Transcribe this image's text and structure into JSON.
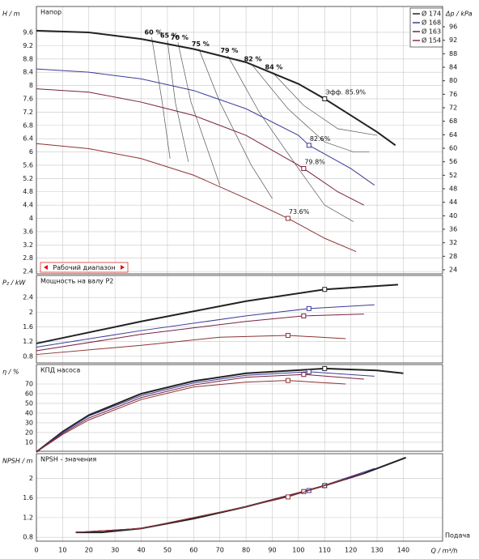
{
  "chart_data": [
    {
      "type": "line",
      "title": "Напор",
      "ylabel": "H / m",
      "y2label": "Δp / kPa",
      "xlim": [
        0,
        155
      ],
      "xticks": [
        0,
        10,
        20,
        30,
        40,
        50,
        60,
        70,
        80,
        90,
        100,
        110,
        120,
        130,
        140
      ],
      "ylim": [
        2.33,
        10.38
      ],
      "yticks": [
        2.4,
        2.8,
        3.2,
        3.6,
        4,
        4.4,
        4.8,
        5.2,
        5.6,
        6,
        6.4,
        6.8,
        7.2,
        7.6,
        8,
        8.4,
        8.8,
        9.2,
        9.6
      ],
      "y2lim": [
        22.8,
        102
      ],
      "y2ticks": [
        24,
        28,
        32,
        36,
        40,
        44,
        48,
        52,
        56,
        60,
        64,
        68,
        72,
        76,
        80,
        84,
        88,
        92,
        96
      ],
      "grid": true,
      "legend": "upper right",
      "annotation": "Рабочий диапазон",
      "series": [
        {
          "name": "Ø 174",
          "color": "#222222",
          "width": 2,
          "x": [
            0,
            20,
            40,
            60,
            80,
            100,
            110,
            120,
            130,
            137
          ],
          "values": [
            9.65,
            9.6,
            9.4,
            9.1,
            8.7,
            8.05,
            7.6,
            7.1,
            6.6,
            6.2
          ],
          "bep_x": 110,
          "bep_y": 7.6,
          "bep_label": "Эфф.  85.9%"
        },
        {
          "name": "Ø 168",
          "color": "#3b3b9c",
          "width": 1,
          "x": [
            0,
            20,
            40,
            60,
            80,
            100,
            104,
            120,
            129
          ],
          "values": [
            8.5,
            8.4,
            8.2,
            7.85,
            7.3,
            6.5,
            6.2,
            5.5,
            5.0
          ],
          "bep_x": 104,
          "bep_y": 6.2,
          "bep_label": "82.6%"
        },
        {
          "name": "Ø 163",
          "color": "#7a2040",
          "width": 1,
          "x": [
            0,
            20,
            40,
            60,
            80,
            100,
            102,
            115,
            125
          ],
          "values": [
            7.9,
            7.8,
            7.5,
            7.1,
            6.5,
            5.6,
            5.5,
            4.8,
            4.4
          ],
          "bep_x": 102,
          "bep_y": 5.5,
          "bep_label": "79.8%"
        },
        {
          "name": "Ø 154",
          "color": "#8c3434",
          "width": 1,
          "x": [
            0,
            20,
            40,
            60,
            80,
            96,
            110,
            122
          ],
          "values": [
            6.25,
            6.1,
            5.8,
            5.3,
            4.6,
            4.0,
            3.4,
            3.0
          ],
          "bep_x": 96,
          "bep_y": 4.0,
          "bep_label": "73.6%"
        }
      ],
      "iso_lines": [
        {
          "label": "60 %",
          "x": [
            44,
            48,
            51
          ],
          "values": [
            9.45,
            7.5,
            5.8
          ]
        },
        {
          "label": "65 %",
          "x": [
            50,
            53,
            58
          ],
          "values": [
            9.35,
            7.5,
            5.7
          ]
        },
        {
          "label": "70 %",
          "x": [
            54,
            59,
            70
          ],
          "values": [
            9.3,
            7.5,
            5.0
          ]
        },
        {
          "label": "75 %",
          "x": [
            62,
            70,
            82,
            90
          ],
          "values": [
            9.1,
            7.5,
            5.6,
            4.6
          ]
        },
        {
          "label": "79 %",
          "x": [
            73,
            85,
            100,
            110,
            121
          ],
          "values": [
            8.9,
            7.2,
            5.5,
            4.4,
            3.9
          ]
        },
        {
          "label": "82 %",
          "x": [
            82,
            96,
            110,
            121,
            127
          ],
          "values": [
            8.65,
            7.3,
            6.3,
            6.0,
            6.0
          ]
        },
        {
          "label": "84 %",
          "x": [
            90,
            102,
            115,
            130
          ],
          "values": [
            8.4,
            7.4,
            6.7,
            6.5
          ]
        }
      ]
    },
    {
      "type": "line",
      "title": "Мощность на валу P2",
      "ylabel": "P₂ / kW",
      "xlim": [
        0,
        155
      ],
      "xticks": [
        0,
        10,
        20,
        30,
        40,
        50,
        60,
        70,
        80,
        90,
        100,
        110,
        120,
        130,
        140
      ],
      "ylim": [
        0.62,
        3.0
      ],
      "yticks": [
        0.8,
        1.2,
        1.6,
        2,
        2.4
      ],
      "grid": true,
      "series": [
        {
          "color": "#222222",
          "width": 2,
          "x": [
            0,
            40,
            80,
            110,
            138
          ],
          "values": [
            1.15,
            1.75,
            2.3,
            2.62,
            2.75
          ],
          "bep_x": 110,
          "bep_y": 2.62
        },
        {
          "color": "#3b3b9c",
          "width": 1,
          "x": [
            0,
            40,
            80,
            104,
            129
          ],
          "values": [
            1.05,
            1.5,
            1.9,
            2.1,
            2.2
          ],
          "bep_x": 104,
          "bep_y": 2.1
        },
        {
          "color": "#7a2040",
          "width": 1,
          "x": [
            0,
            40,
            80,
            102,
            125
          ],
          "values": [
            0.95,
            1.4,
            1.75,
            1.9,
            1.95
          ],
          "bep_x": 102,
          "bep_y": 1.9
        },
        {
          "color": "#8c3434",
          "width": 1,
          "x": [
            0,
            40,
            70,
            96,
            118
          ],
          "values": [
            0.85,
            1.1,
            1.32,
            1.37,
            1.28
          ],
          "bep_x": 96,
          "bep_y": 1.37
        }
      ]
    },
    {
      "type": "line",
      "title": "КПД насоса",
      "ylabel": "η / %",
      "xlim": [
        0,
        155
      ],
      "xticks": [
        0,
        10,
        20,
        30,
        40,
        50,
        60,
        70,
        80,
        90,
        100,
        110,
        120,
        130,
        140
      ],
      "ylim": [
        0.8,
        90
      ],
      "yticks": [
        10,
        20,
        30,
        40,
        50,
        60,
        70
      ],
      "grid": true,
      "series": [
        {
          "color": "#222222",
          "width": 2,
          "x": [
            0,
            10,
            20,
            40,
            60,
            80,
            110,
            130,
            140
          ],
          "values": [
            0,
            21,
            38,
            60,
            73,
            81,
            85.9,
            84,
            81
          ],
          "bep_x": 110,
          "bep_y": 85.9
        },
        {
          "color": "#3b3b9c",
          "width": 1,
          "x": [
            0,
            10,
            20,
            40,
            60,
            80,
            104,
            129
          ],
          "values": [
            0,
            20,
            37,
            58,
            71,
            79,
            82.6,
            78
          ],
          "bep_x": 104,
          "bep_y": 82.6
        },
        {
          "color": "#7a2040",
          "width": 1,
          "x": [
            0,
            10,
            20,
            40,
            60,
            80,
            102,
            125
          ],
          "values": [
            0,
            19,
            35,
            56,
            69,
            77,
            79.8,
            75
          ],
          "bep_x": 102,
          "bep_y": 79.8
        },
        {
          "color": "#8c3434",
          "width": 1,
          "x": [
            0,
            10,
            20,
            40,
            60,
            80,
            96,
            118
          ],
          "values": [
            0,
            18,
            33,
            54,
            67,
            72,
            73.6,
            70
          ],
          "bep_x": 96,
          "bep_y": 73.6
        }
      ]
    },
    {
      "type": "line",
      "title": "NPSH - значения",
      "ylabel": "NPSH / m",
      "xlabel": "Q / m³/h",
      "xnote": "Подача",
      "xlim": [
        0,
        155
      ],
      "xticks": [
        0,
        10,
        20,
        30,
        40,
        50,
        60,
        70,
        80,
        90,
        100,
        110,
        120,
        130,
        140
      ],
      "ylim": [
        0.72,
        2.5
      ],
      "yticks": [
        0.8,
        1.2,
        1.6,
        2
      ],
      "grid": true,
      "series": [
        {
          "color": "#222222",
          "width": 2,
          "x": [
            15,
            25,
            40,
            60,
            80,
            100,
            110,
            125,
            141
          ],
          "values": [
            0.9,
            0.9,
            0.98,
            1.18,
            1.42,
            1.7,
            1.85,
            2.1,
            2.42
          ],
          "bep_x": 110,
          "bep_y": 1.85
        },
        {
          "color": "#3b3b9c",
          "width": 1,
          "x": [
            15,
            40,
            80,
            104,
            129
          ],
          "values": [
            0.9,
            0.98,
            1.42,
            1.75,
            2.2
          ],
          "bep_x": 104,
          "bep_y": 1.75
        },
        {
          "color": "#7a2040",
          "width": 1,
          "x": [
            15,
            40,
            80,
            102,
            125
          ],
          "values": [
            0.9,
            0.98,
            1.42,
            1.73,
            2.1
          ],
          "bep_x": 102,
          "bep_y": 1.73
        },
        {
          "color": "#8c3434",
          "width": 1,
          "x": [
            15,
            40,
            80,
            96,
            118
          ],
          "values": [
            0.9,
            0.98,
            1.42,
            1.62,
            1.98
          ],
          "bep_x": 96,
          "bep_y": 1.62
        }
      ]
    }
  ]
}
